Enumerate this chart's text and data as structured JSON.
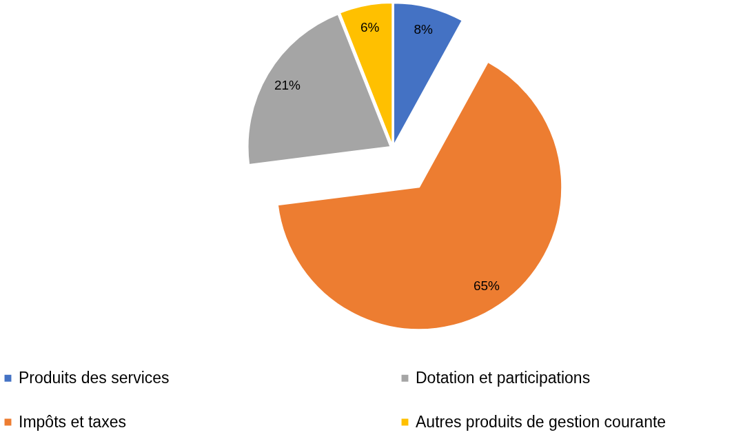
{
  "chart_data": {
    "type": "pie",
    "categories": [
      "Produits des services",
      "Impôts et taxes",
      "Dotation et participations",
      "Autres produits de gestion courante"
    ],
    "values": [
      8,
      65,
      21,
      6
    ],
    "colors": [
      "#4472c4",
      "#ed7d31",
      "#a5a5a5",
      "#ffc000"
    ],
    "value_labels": [
      "8%",
      "65%",
      "21%",
      "6%"
    ],
    "legend": "bottom"
  }
}
